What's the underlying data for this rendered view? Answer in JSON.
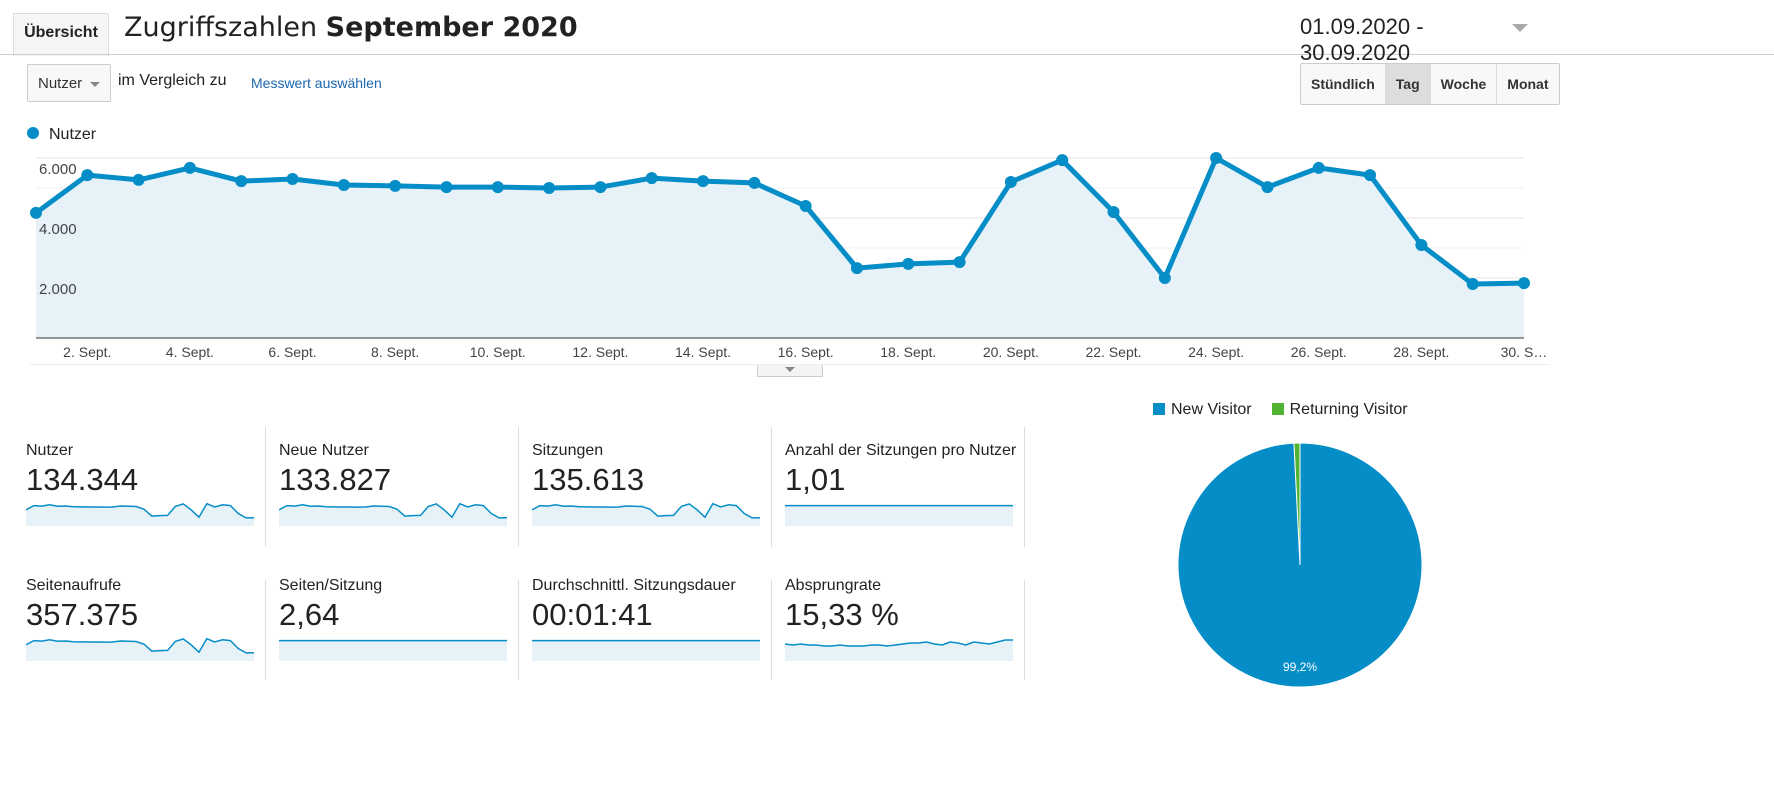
{
  "header": {
    "tab": "Übersicht",
    "title_prefix": "Zugriffszahlen",
    "title_bold": "September 2020",
    "date_range": "01.09.2020 - 30.09.2020"
  },
  "controls": {
    "metric": "Nutzer",
    "compare_label": "im Vergleich zu",
    "select_metric": "Messwert auswählen",
    "granularity": [
      {
        "label": "Stündlich",
        "active": false
      },
      {
        "label": "Tag",
        "active": true
      },
      {
        "label": "Woche",
        "active": false
      },
      {
        "label": "Monat",
        "active": false
      }
    ]
  },
  "colors": {
    "accent": "#058dc7",
    "returning": "#50b432",
    "fill": "#e6f2f8"
  },
  "chart_data": {
    "type": "area",
    "legend": "Nutzer",
    "x": [
      1,
      2,
      3,
      4,
      5,
      6,
      7,
      8,
      9,
      10,
      11,
      12,
      13,
      14,
      15,
      16,
      17,
      18,
      19,
      20,
      21,
      22,
      23,
      24,
      25,
      26,
      27,
      28,
      29,
      30
    ],
    "values": [
      4170,
      5430,
      5270,
      5670,
      5230,
      5300,
      5100,
      5070,
      5030,
      5030,
      5000,
      5030,
      5330,
      5230,
      5170,
      4400,
      2330,
      2470,
      2530,
      5200,
      5930,
      4200,
      2000,
      6000,
      5030,
      5670,
      5430,
      3100,
      1800,
      1830
    ],
    "yticks": [
      "2.000",
      "4.000",
      "6.000"
    ],
    "ytick_values": [
      2000,
      4000,
      6000
    ],
    "ylim": [
      0,
      6000
    ],
    "xtick_labels": [
      "2. Sept.",
      "4. Sept.",
      "6. Sept.",
      "8. Sept.",
      "10. Sept.",
      "12. Sept.",
      "14. Sept.",
      "16. Sept.",
      "18. Sept.",
      "20. Sept.",
      "22. Sept.",
      "24. Sept.",
      "26. Sept.",
      "28. Sept.",
      "30. S…"
    ]
  },
  "metrics": [
    {
      "label": "Nutzer",
      "value": "134.344",
      "spark": "users"
    },
    {
      "label": "Neue Nutzer",
      "value": "133.827",
      "spark": "users"
    },
    {
      "label": "Sitzungen",
      "value": "135.613",
      "spark": "users"
    },
    {
      "label": "Anzahl der Sitzungen pro Nutzer",
      "value": "1,01",
      "spark": "flat"
    },
    {
      "label": "Seitenaufrufe",
      "value": "357.375",
      "spark": "users"
    },
    {
      "label": "Seiten/Sitzung",
      "value": "2,64",
      "spark": "flat"
    },
    {
      "label": "Durchschnittl. Sitzungsdauer",
      "value": "00:01:41",
      "spark": "flat"
    },
    {
      "label": "Absprungrate",
      "value": "15,33 %",
      "spark": "bounce"
    }
  ],
  "pie": {
    "legend": [
      "New Visitor",
      "Returning Visitor"
    ],
    "values": [
      99.2,
      0.8
    ],
    "label": "99,2%"
  }
}
